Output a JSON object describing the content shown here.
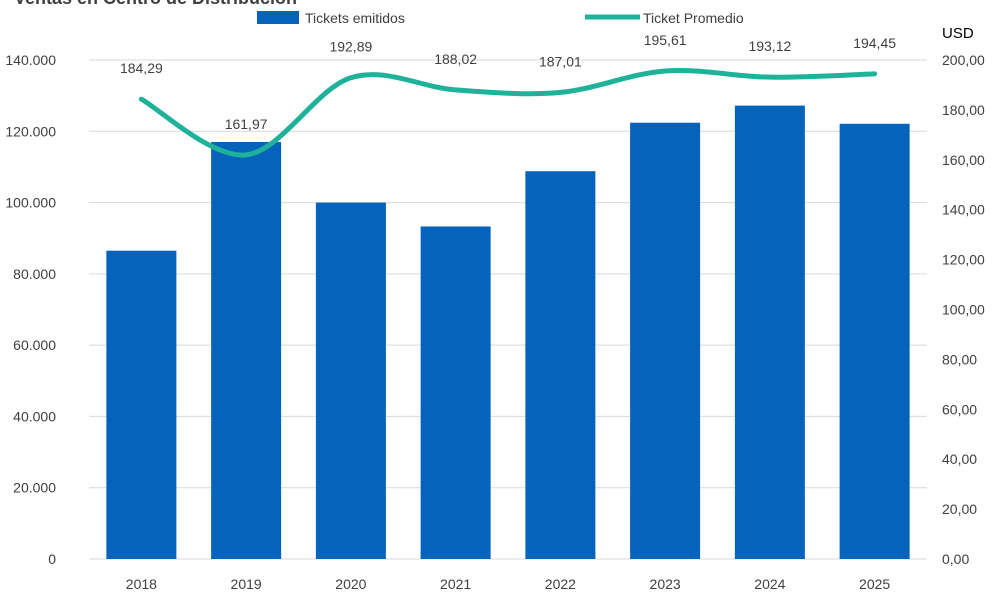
{
  "chart_data": {
    "type": "bar",
    "title": "Ventas en Centro de Distribución",
    "categories": [
      "2018",
      "2019",
      "2020",
      "2021",
      "2022",
      "2023",
      "2024",
      "2025"
    ],
    "series": [
      {
        "name": "Tickets emitidos",
        "type": "bar",
        "axis": "left",
        "color": "#0563BB",
        "values": [
          86500,
          117000,
          100000,
          93300,
          108800,
          122400,
          127200,
          122100
        ]
      },
      {
        "name": "Ticket Promedio",
        "type": "line",
        "axis": "right",
        "color": "#1FB29B",
        "values": [
          184.29,
          161.97,
          192.89,
          188.02,
          187.01,
          195.61,
          193.12,
          194.45
        ],
        "labels": [
          "184,29",
          "161,97",
          "192,89",
          "188,02",
          "187,01",
          "195,61",
          "193,12",
          "194,45"
        ]
      }
    ],
    "y_left": {
      "ylim": [
        0,
        140000
      ],
      "ticks": [
        0,
        20000,
        40000,
        60000,
        80000,
        100000,
        120000,
        140000
      ],
      "tick_labels": [
        "0",
        "20.000",
        "40.000",
        "60.000",
        "80.000",
        "100.000",
        "120.000",
        "140.000"
      ]
    },
    "y_right": {
      "label": "USD",
      "ylim": [
        0,
        200
      ],
      "ticks": [
        0,
        20,
        40,
        60,
        80,
        100,
        120,
        140,
        160,
        180,
        200
      ],
      "tick_labels": [
        "0,00",
        "20,00",
        "40,00",
        "60,00",
        "80,00",
        "100,00",
        "120,00",
        "140,00",
        "160,00",
        "180,00",
        "200,00"
      ]
    },
    "grid": true,
    "legend_position": "top"
  }
}
